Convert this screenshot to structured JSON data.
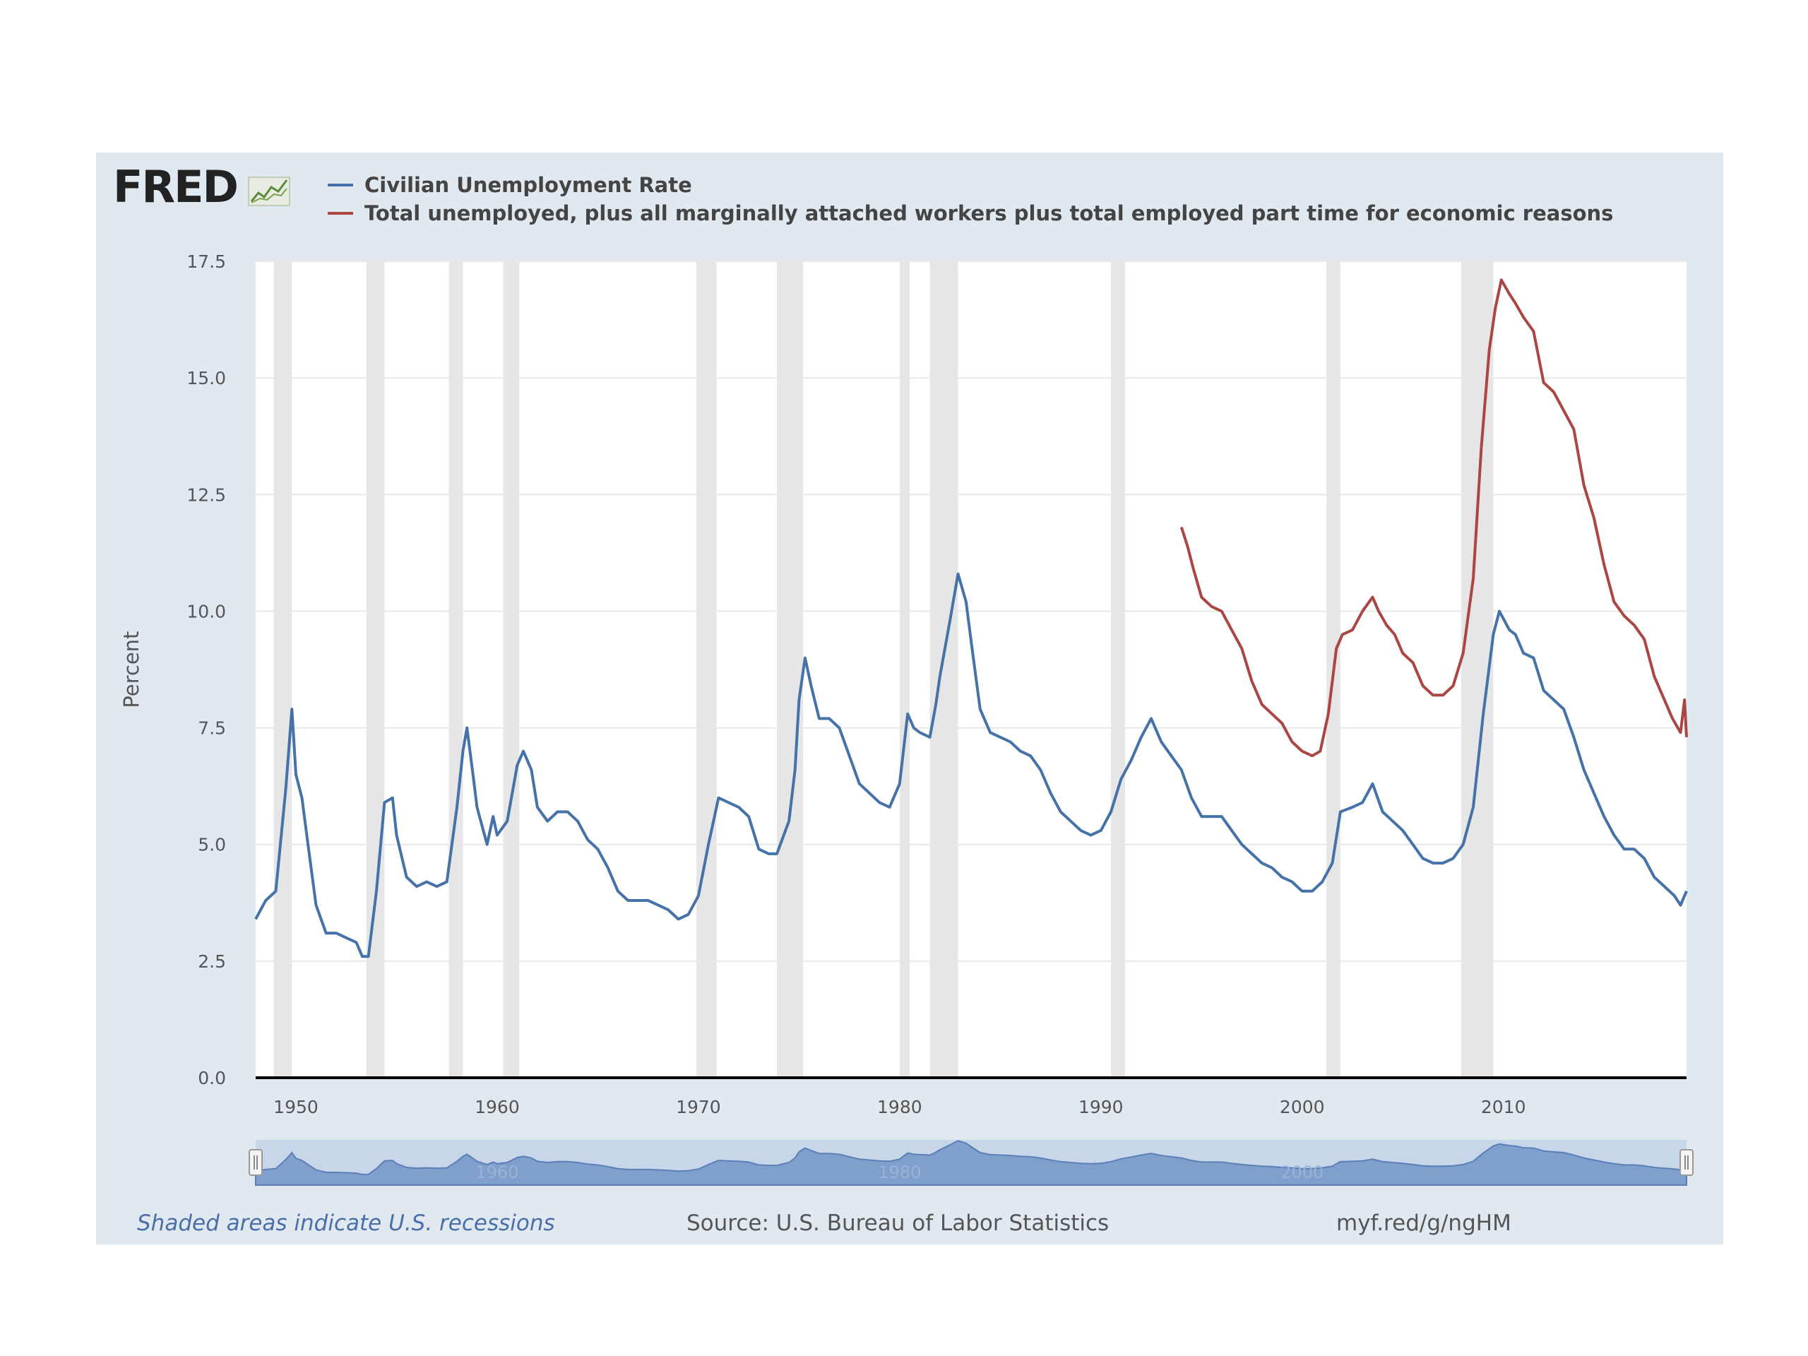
{
  "brand": {
    "name": "FRED"
  },
  "legend": [
    {
      "label": "Civilian Unemployment Rate",
      "color": "#4572a7"
    },
    {
      "label": "Total unemployed, plus all marginally attached workers plus total employed part time for economic reasons",
      "color": "#aa4643"
    }
  ],
  "footer": {
    "note": "Shaded areas indicate U.S. recessions",
    "source": "Source: U.S. Bureau of Labor Statistics",
    "url": "myf.red/g/ngHM"
  },
  "chart_data": {
    "type": "line",
    "ylabel": "Percent",
    "xlabel": "",
    "xlim": [
      1948,
      2019.1
    ],
    "ylim": [
      0,
      17.5
    ],
    "x_ticks": [
      1950,
      1960,
      1970,
      1980,
      1990,
      2000,
      2010
    ],
    "y_ticks": [
      0.0,
      2.5,
      5.0,
      7.5,
      10.0,
      12.5,
      15.0,
      17.5
    ],
    "grid": true,
    "legend_position": "top",
    "recessions": [
      [
        1948.9,
        1949.8
      ],
      [
        1953.5,
        1954.4
      ],
      [
        1957.6,
        1958.3
      ],
      [
        1960.3,
        1961.1
      ],
      [
        1969.9,
        1970.9
      ],
      [
        1973.9,
        1975.2
      ],
      [
        1980.0,
        1980.5
      ],
      [
        1981.5,
        1982.9
      ],
      [
        1990.5,
        1991.2
      ],
      [
        2001.2,
        2001.9
      ],
      [
        2007.9,
        2009.5
      ]
    ],
    "series": [
      {
        "name": "Civilian Unemployment Rate",
        "color": "#4572a7",
        "points": [
          [
            1948.0,
            3.4
          ],
          [
            1948.5,
            3.8
          ],
          [
            1949.0,
            4.0
          ],
          [
            1949.5,
            6.2
          ],
          [
            1949.8,
            7.9
          ],
          [
            1950.0,
            6.5
          ],
          [
            1950.3,
            6.0
          ],
          [
            1950.6,
            5.0
          ],
          [
            1951.0,
            3.7
          ],
          [
            1951.5,
            3.1
          ],
          [
            1952.0,
            3.1
          ],
          [
            1952.5,
            3.0
          ],
          [
            1953.0,
            2.9
          ],
          [
            1953.3,
            2.6
          ],
          [
            1953.6,
            2.6
          ],
          [
            1954.0,
            4.0
          ],
          [
            1954.4,
            5.9
          ],
          [
            1954.8,
            6.0
          ],
          [
            1955.0,
            5.2
          ],
          [
            1955.5,
            4.3
          ],
          [
            1956.0,
            4.1
          ],
          [
            1956.5,
            4.2
          ],
          [
            1957.0,
            4.1
          ],
          [
            1957.5,
            4.2
          ],
          [
            1958.0,
            5.8
          ],
          [
            1958.3,
            7.0
          ],
          [
            1958.5,
            7.5
          ],
          [
            1958.8,
            6.5
          ],
          [
            1959.0,
            5.8
          ],
          [
            1959.5,
            5.0
          ],
          [
            1959.8,
            5.6
          ],
          [
            1960.0,
            5.2
          ],
          [
            1960.5,
            5.5
          ],
          [
            1961.0,
            6.7
          ],
          [
            1961.3,
            7.0
          ],
          [
            1961.7,
            6.6
          ],
          [
            1962.0,
            5.8
          ],
          [
            1962.5,
            5.5
          ],
          [
            1963.0,
            5.7
          ],
          [
            1963.5,
            5.7
          ],
          [
            1964.0,
            5.5
          ],
          [
            1964.5,
            5.1
          ],
          [
            1965.0,
            4.9
          ],
          [
            1965.5,
            4.5
          ],
          [
            1966.0,
            4.0
          ],
          [
            1966.5,
            3.8
          ],
          [
            1967.0,
            3.8
          ],
          [
            1967.5,
            3.8
          ],
          [
            1968.0,
            3.7
          ],
          [
            1968.5,
            3.6
          ],
          [
            1969.0,
            3.4
          ],
          [
            1969.5,
            3.5
          ],
          [
            1970.0,
            3.9
          ],
          [
            1970.5,
            5.0
          ],
          [
            1971.0,
            6.0
          ],
          [
            1971.5,
            5.9
          ],
          [
            1972.0,
            5.8
          ],
          [
            1972.5,
            5.6
          ],
          [
            1973.0,
            4.9
          ],
          [
            1973.5,
            4.8
          ],
          [
            1973.9,
            4.8
          ],
          [
            1974.5,
            5.5
          ],
          [
            1974.8,
            6.6
          ],
          [
            1975.0,
            8.1
          ],
          [
            1975.3,
            9.0
          ],
          [
            1975.6,
            8.4
          ],
          [
            1976.0,
            7.7
          ],
          [
            1976.5,
            7.7
          ],
          [
            1977.0,
            7.5
          ],
          [
            1977.5,
            6.9
          ],
          [
            1978.0,
            6.3
          ],
          [
            1978.5,
            6.1
          ],
          [
            1979.0,
            5.9
          ],
          [
            1979.5,
            5.8
          ],
          [
            1980.0,
            6.3
          ],
          [
            1980.4,
            7.8
          ],
          [
            1980.7,
            7.5
          ],
          [
            1981.0,
            7.4
          ],
          [
            1981.5,
            7.3
          ],
          [
            1981.8,
            8.0
          ],
          [
            1982.0,
            8.6
          ],
          [
            1982.5,
            9.8
          ],
          [
            1982.9,
            10.8
          ],
          [
            1983.3,
            10.2
          ],
          [
            1983.6,
            9.2
          ],
          [
            1984.0,
            7.9
          ],
          [
            1984.5,
            7.4
          ],
          [
            1985.0,
            7.3
          ],
          [
            1985.5,
            7.2
          ],
          [
            1986.0,
            7.0
          ],
          [
            1986.5,
            6.9
          ],
          [
            1987.0,
            6.6
          ],
          [
            1987.5,
            6.1
          ],
          [
            1988.0,
            5.7
          ],
          [
            1988.5,
            5.5
          ],
          [
            1989.0,
            5.3
          ],
          [
            1989.5,
            5.2
          ],
          [
            1990.0,
            5.3
          ],
          [
            1990.5,
            5.7
          ],
          [
            1991.0,
            6.4
          ],
          [
            1991.5,
            6.8
          ],
          [
            1992.0,
            7.3
          ],
          [
            1992.5,
            7.7
          ],
          [
            1993.0,
            7.2
          ],
          [
            1993.5,
            6.9
          ],
          [
            1994.0,
            6.6
          ],
          [
            1994.5,
            6.0
          ],
          [
            1995.0,
            5.6
          ],
          [
            1995.5,
            5.6
          ],
          [
            1996.0,
            5.6
          ],
          [
            1996.5,
            5.3
          ],
          [
            1997.0,
            5.0
          ],
          [
            1997.5,
            4.8
          ],
          [
            1998.0,
            4.6
          ],
          [
            1998.5,
            4.5
          ],
          [
            1999.0,
            4.3
          ],
          [
            1999.5,
            4.2
          ],
          [
            2000.0,
            4.0
          ],
          [
            2000.5,
            4.0
          ],
          [
            2001.0,
            4.2
          ],
          [
            2001.5,
            4.6
          ],
          [
            2001.9,
            5.7
          ],
          [
            2002.5,
            5.8
          ],
          [
            2003.0,
            5.9
          ],
          [
            2003.5,
            6.3
          ],
          [
            2004.0,
            5.7
          ],
          [
            2004.5,
            5.5
          ],
          [
            2005.0,
            5.3
          ],
          [
            2005.5,
            5.0
          ],
          [
            2006.0,
            4.7
          ],
          [
            2006.5,
            4.6
          ],
          [
            2007.0,
            4.6
          ],
          [
            2007.5,
            4.7
          ],
          [
            2008.0,
            5.0
          ],
          [
            2008.5,
            5.8
          ],
          [
            2009.0,
            7.8
          ],
          [
            2009.5,
            9.5
          ],
          [
            2009.8,
            10.0
          ],
          [
            2010.3,
            9.6
          ],
          [
            2010.6,
            9.5
          ],
          [
            2011.0,
            9.1
          ],
          [
            2011.5,
            9.0
          ],
          [
            2012.0,
            8.3
          ],
          [
            2012.5,
            8.1
          ],
          [
            2013.0,
            7.9
          ],
          [
            2013.5,
            7.3
          ],
          [
            2014.0,
            6.6
          ],
          [
            2014.5,
            6.1
          ],
          [
            2015.0,
            5.6
          ],
          [
            2015.5,
            5.2
          ],
          [
            2016.0,
            4.9
          ],
          [
            2016.5,
            4.9
          ],
          [
            2017.0,
            4.7
          ],
          [
            2017.5,
            4.3
          ],
          [
            2018.0,
            4.1
          ],
          [
            2018.5,
            3.9
          ],
          [
            2018.8,
            3.7
          ],
          [
            2019.1,
            4.0
          ]
        ]
      },
      {
        "name": "Total unemployed, plus all marginally attached workers plus total employed part time for economic reasons",
        "color": "#aa4643",
        "points": [
          [
            1994.0,
            11.8
          ],
          [
            1994.3,
            11.4
          ],
          [
            1994.6,
            10.9
          ],
          [
            1995.0,
            10.3
          ],
          [
            1995.5,
            10.1
          ],
          [
            1996.0,
            10.0
          ],
          [
            1996.5,
            9.6
          ],
          [
            1997.0,
            9.2
          ],
          [
            1997.5,
            8.5
          ],
          [
            1998.0,
            8.0
          ],
          [
            1998.5,
            7.8
          ],
          [
            1999.0,
            7.6
          ],
          [
            1999.5,
            7.2
          ],
          [
            2000.0,
            7.0
          ],
          [
            2000.5,
            6.9
          ],
          [
            2000.9,
            7.0
          ],
          [
            2001.3,
            7.8
          ],
          [
            2001.7,
            9.2
          ],
          [
            2002.0,
            9.5
          ],
          [
            2002.5,
            9.6
          ],
          [
            2003.0,
            10.0
          ],
          [
            2003.5,
            10.3
          ],
          [
            2003.8,
            10.0
          ],
          [
            2004.2,
            9.7
          ],
          [
            2004.6,
            9.5
          ],
          [
            2005.0,
            9.1
          ],
          [
            2005.5,
            8.9
          ],
          [
            2006.0,
            8.4
          ],
          [
            2006.5,
            8.2
          ],
          [
            2007.0,
            8.2
          ],
          [
            2007.5,
            8.4
          ],
          [
            2008.0,
            9.1
          ],
          [
            2008.5,
            10.7
          ],
          [
            2008.9,
            13.5
          ],
          [
            2009.3,
            15.6
          ],
          [
            2009.6,
            16.5
          ],
          [
            2009.9,
            17.1
          ],
          [
            2010.3,
            16.8
          ],
          [
            2010.6,
            16.6
          ],
          [
            2011.0,
            16.3
          ],
          [
            2011.5,
            16.0
          ],
          [
            2012.0,
            14.9
          ],
          [
            2012.5,
            14.7
          ],
          [
            2013.0,
            14.3
          ],
          [
            2013.5,
            13.9
          ],
          [
            2014.0,
            12.7
          ],
          [
            2014.5,
            12.0
          ],
          [
            2015.0,
            11.0
          ],
          [
            2015.5,
            10.2
          ],
          [
            2016.0,
            9.9
          ],
          [
            2016.5,
            9.7
          ],
          [
            2017.0,
            9.4
          ],
          [
            2017.5,
            8.6
          ],
          [
            2018.0,
            8.1
          ],
          [
            2018.4,
            7.7
          ],
          [
            2018.8,
            7.4
          ],
          [
            2019.0,
            8.1
          ],
          [
            2019.1,
            7.3
          ]
        ]
      }
    ],
    "navigator": {
      "tick_labels": [
        "1960",
        "1980",
        "2000"
      ]
    }
  }
}
